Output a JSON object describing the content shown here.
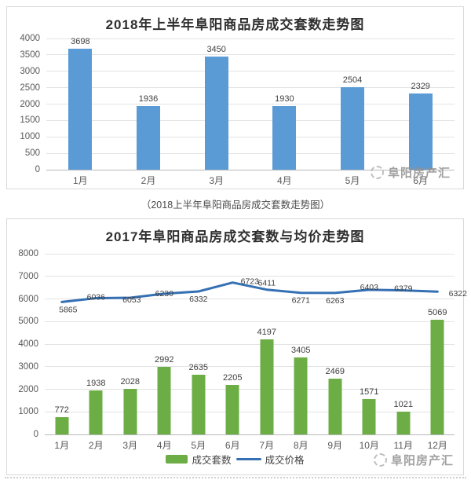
{
  "caption": "（2018上半年阜阳商品房成交套数走势图）",
  "watermark_text": "阜阳房产汇",
  "colors": {
    "bar_blue": "#5B9BD5",
    "bar_green": "#6CAE45",
    "line_blue": "#3570B4",
    "grid": "#e3e3e3"
  },
  "chart_data": [
    {
      "type": "bar",
      "title": "2018年上半年阜阳商品房成交套数走势图",
      "categories": [
        "1月",
        "2月",
        "3月",
        "4月",
        "5月",
        "6月"
      ],
      "values": [
        3698,
        1936,
        3450,
        1930,
        2504,
        2329
      ],
      "xlabel": "",
      "ylabel": "",
      "ylim": [
        0,
        4000
      ],
      "ytick_step": 500,
      "grid": true,
      "legend": "none",
      "bar_color": "#5B9BD5"
    },
    {
      "type": "bar+line",
      "title": "2017年阜阳商品房成交套数与均价走势图",
      "categories": [
        "1月",
        "2月",
        "3月",
        "4月",
        "5月",
        "6月",
        "7月",
        "8月",
        "9月",
        "10月",
        "11月",
        "12月"
      ],
      "series": [
        {
          "name": "成交套数",
          "type": "bar",
          "color": "#6CAE45",
          "values": [
            772,
            1938,
            2028,
            2992,
            2635,
            2205,
            4197,
            3405,
            2469,
            1571,
            1021,
            5069
          ]
        },
        {
          "name": "成交价格",
          "type": "line",
          "color": "#3570B4",
          "values": [
            5865,
            6036,
            6053,
            6230,
            6332,
            6723,
            6411,
            6271,
            6263,
            6403,
            6379,
            6322
          ]
        }
      ],
      "xlabel": "",
      "ylabel": "",
      "ylim": [
        0,
        8000
      ],
      "ytick_step": 1000,
      "grid": true,
      "legend_position": "bottom"
    }
  ]
}
